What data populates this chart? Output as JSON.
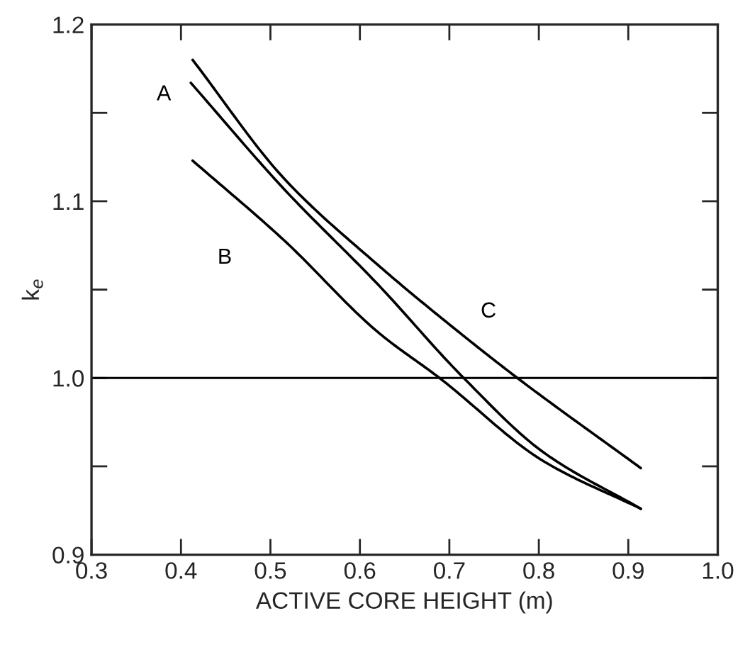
{
  "chart_data": {
    "type": "line",
    "xlabel": "ACTIVE CORE HEIGHT (m)",
    "ylabel": "k$_{e}$",
    "xlim": [
      0.3,
      1.0
    ],
    "ylim": [
      0.9,
      1.2
    ],
    "xticks": [
      {
        "value": 0.3,
        "label": "0.3"
      },
      {
        "value": 0.4,
        "label": "0.4"
      },
      {
        "value": 0.5,
        "label": "0.5"
      },
      {
        "value": 0.6,
        "label": "0.6"
      },
      {
        "value": 0.7,
        "label": "0.7"
      },
      {
        "value": 0.8,
        "label": "0.8"
      },
      {
        "value": 0.9,
        "label": "0.9"
      },
      {
        "value": 1.0,
        "label": "1.0"
      }
    ],
    "yticks": [
      {
        "value": 0.9,
        "label": "0.9"
      },
      {
        "value": 0.95,
        "label": null
      },
      {
        "value": 1.0,
        "label": "1.0"
      },
      {
        "value": 1.05,
        "label": null
      },
      {
        "value": 1.1,
        "label": "1.1"
      },
      {
        "value": 1.15,
        "label": null
      },
      {
        "value": 1.2,
        "label": "1.2"
      }
    ],
    "marker": "none",
    "line_style": "solid",
    "grid": false,
    "legend": false,
    "series": [
      {
        "name": "A",
        "color": "#000000",
        "x": [
          0.411,
          0.515,
          0.62,
          0.716,
          0.805,
          0.914
        ],
        "values": [
          1.167,
          1.107,
          1.053,
          1.0,
          0.958,
          0.926
        ]
      },
      {
        "name": "B",
        "color": "#000000",
        "x": [
          0.413,
          0.515,
          0.62,
          0.689,
          0.805,
          0.914
        ],
        "values": [
          1.123,
          1.078,
          1.026,
          1.0,
          0.953,
          0.926
        ]
      },
      {
        "name": "C",
        "color": "#000000",
        "x": [
          0.413,
          0.515,
          0.62,
          0.713,
          0.776,
          0.914
        ],
        "values": [
          1.18,
          1.113,
          1.064,
          1.025,
          1.0,
          0.949
        ]
      }
    ],
    "ref_lines": [
      {
        "axis": "y",
        "value": 1.0,
        "color": "#000000"
      }
    ]
  }
}
